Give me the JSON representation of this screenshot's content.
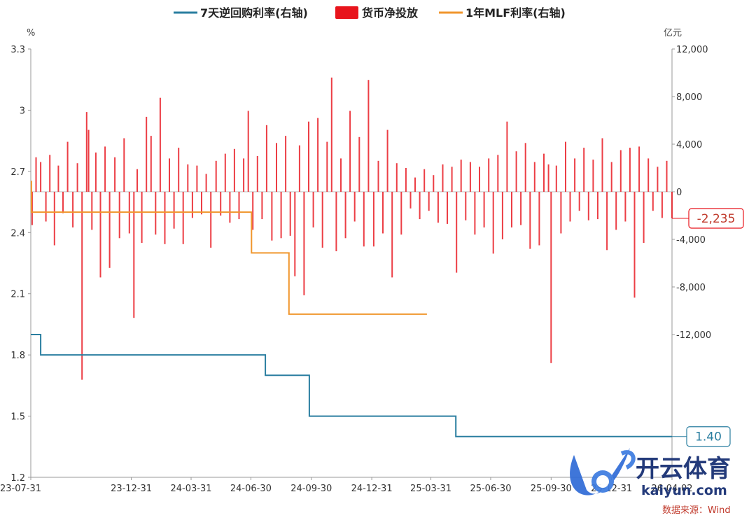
{
  "chart_data": {
    "type": "bar+line",
    "legend": [
      {
        "label": "7天逆回购利率(右轴)",
        "color": "#2a7ea0",
        "kind": "line"
      },
      {
        "label": "货币净投放",
        "color": "#e8141c",
        "kind": "bar"
      },
      {
        "label": "1年MLF利率(右轴)",
        "color": "#f0962d",
        "kind": "line"
      }
    ],
    "left_axis": {
      "unit": "%",
      "min": 1.2,
      "max": 3.3,
      "ticks": [
        "3.3",
        "3",
        "2.7",
        "2.4",
        "2.1",
        "1.8",
        "1.5",
        "1.2"
      ]
    },
    "right_axis": {
      "unit": "亿元",
      "min": -24000,
      "max": 12000,
      "ticks": [
        "12,000",
        "8,000",
        "4,000",
        "0",
        "-4,000",
        "-8,000",
        "-12,000"
      ]
    },
    "x_axis": {
      "start": "2023-07-31",
      "end": "2026-04-02",
      "ticks": [
        {
          "label": "23-07-31",
          "date": "2023-07-31"
        },
        {
          "label": "23-12-31",
          "date": "2023-12-31"
        },
        {
          "label": "24-03-31",
          "date": "2024-03-31"
        },
        {
          "label": "24-06-30",
          "date": "2024-06-30"
        },
        {
          "label": "24-09-30",
          "date": "2024-09-30"
        },
        {
          "label": "24-12-31",
          "date": "2024-12-31"
        },
        {
          "label": "25-03-31",
          "date": "2025-03-31"
        },
        {
          "label": "25-06-30",
          "date": "2025-06-30"
        },
        {
          "label": "25-09-30",
          "date": "2025-09-30"
        },
        {
          "label": "25-12-31",
          "date": "2025-12-31"
        },
        {
          "label": "26-04-02",
          "date": "2026-04-02"
        }
      ]
    },
    "series": [
      {
        "name": "7天逆回购利率(右轴)",
        "axis": "left",
        "shape": "step",
        "points": [
          [
            "2023-07-31",
            1.9
          ],
          [
            "2023-08-15",
            1.8
          ],
          [
            "2024-07-22",
            1.7
          ],
          [
            "2024-09-27",
            1.5
          ],
          [
            "2025-05-08",
            1.4
          ],
          [
            "2026-04-02",
            1.4
          ]
        ]
      },
      {
        "name": "1年MLF利率(右轴)",
        "axis": "left",
        "shape": "step",
        "points": [
          [
            "2023-07-31",
            2.65
          ],
          [
            "2023-08-01",
            2.5
          ],
          [
            "2024-06-30",
            2.5
          ],
          [
            "2024-07-01",
            2.3
          ],
          [
            "2024-08-26",
            2.3
          ],
          [
            "2024-08-27",
            2.0
          ],
          [
            "2025-03-25",
            2.0
          ]
        ]
      },
      {
        "name": "货币净投放",
        "axis": "right",
        "shape": "bars",
        "points": [
          [
            "2023-08-02",
            -2800
          ],
          [
            "2023-08-08",
            2900
          ],
          [
            "2023-08-15",
            2500
          ],
          [
            "2023-08-23",
            -2500
          ],
          [
            "2023-08-29",
            3100
          ],
          [
            "2023-09-05",
            -4500
          ],
          [
            "2023-09-11",
            2200
          ],
          [
            "2023-09-18",
            -1800
          ],
          [
            "2023-09-25",
            4200
          ],
          [
            "2023-10-03",
            -3000
          ],
          [
            "2023-10-10",
            2400
          ],
          [
            "2023-10-17",
            -15800
          ],
          [
            "2023-10-24",
            6700
          ],
          [
            "2023-10-27",
            5200
          ],
          [
            "2023-11-01",
            -3200
          ],
          [
            "2023-11-07",
            3300
          ],
          [
            "2023-11-14",
            -7200
          ],
          [
            "2023-11-21",
            3800
          ],
          [
            "2023-11-28",
            -6400
          ],
          [
            "2023-12-06",
            2900
          ],
          [
            "2023-12-13",
            -3900
          ],
          [
            "2023-12-20",
            4500
          ],
          [
            "2023-12-28",
            -3500
          ],
          [
            "2024-01-04",
            -10600
          ],
          [
            "2024-01-09",
            1900
          ],
          [
            "2024-01-16",
            -4300
          ],
          [
            "2024-01-23",
            6300
          ],
          [
            "2024-01-30",
            4700
          ],
          [
            "2024-02-06",
            -3600
          ],
          [
            "2024-02-13",
            7900
          ],
          [
            "2024-02-20",
            -4400
          ],
          [
            "2024-02-27",
            2800
          ],
          [
            "2024-03-05",
            -3100
          ],
          [
            "2024-03-12",
            3700
          ],
          [
            "2024-03-19",
            -4400
          ],
          [
            "2024-03-26",
            2300
          ],
          [
            "2024-04-02",
            -2200
          ],
          [
            "2024-04-09",
            2200
          ],
          [
            "2024-04-16",
            -1900
          ],
          [
            "2024-04-23",
            1500
          ],
          [
            "2024-04-30",
            -4700
          ],
          [
            "2024-05-08",
            2600
          ],
          [
            "2024-05-15",
            -2000
          ],
          [
            "2024-05-22",
            3200
          ],
          [
            "2024-05-29",
            -2600
          ],
          [
            "2024-06-05",
            3600
          ],
          [
            "2024-06-12",
            -2300
          ],
          [
            "2024-06-19",
            2800
          ],
          [
            "2024-06-26",
            6800
          ],
          [
            "2024-07-03",
            -3200
          ],
          [
            "2024-07-10",
            3000
          ],
          [
            "2024-07-17",
            -2300
          ],
          [
            "2024-07-24",
            5600
          ],
          [
            "2024-08-01",
            -4100
          ],
          [
            "2024-08-08",
            4100
          ],
          [
            "2024-08-15",
            -3900
          ],
          [
            "2024-08-22",
            4700
          ],
          [
            "2024-08-29",
            -3700
          ],
          [
            "2024-09-05",
            -7100
          ],
          [
            "2024-09-12",
            3900
          ],
          [
            "2024-09-19",
            -8700
          ],
          [
            "2024-09-26",
            5900
          ],
          [
            "2024-10-03",
            -3000
          ],
          [
            "2024-10-10",
            6200
          ],
          [
            "2024-10-17",
            -4700
          ],
          [
            "2024-10-24",
            4200
          ],
          [
            "2024-10-31",
            9600
          ],
          [
            "2024-11-07",
            -5000
          ],
          [
            "2024-11-14",
            2800
          ],
          [
            "2024-11-21",
            -3900
          ],
          [
            "2024-11-28",
            6800
          ],
          [
            "2024-12-05",
            -2500
          ],
          [
            "2024-12-12",
            4600
          ],
          [
            "2024-12-19",
            -4600
          ],
          [
            "2024-12-26",
            9400
          ],
          [
            "2025-01-03",
            -4600
          ],
          [
            "2025-01-10",
            2600
          ],
          [
            "2025-01-17",
            -3500
          ],
          [
            "2025-01-24",
            5200
          ],
          [
            "2025-01-31",
            -7200
          ],
          [
            "2025-02-07",
            2400
          ],
          [
            "2025-02-14",
            -3600
          ],
          [
            "2025-02-21",
            2000
          ],
          [
            "2025-02-28",
            -1400
          ],
          [
            "2025-03-07",
            1200
          ],
          [
            "2025-03-14",
            -2300
          ],
          [
            "2025-03-21",
            1900
          ],
          [
            "2025-03-28",
            -1600
          ],
          [
            "2025-04-04",
            1400
          ],
          [
            "2025-04-11",
            -2600
          ],
          [
            "2025-04-18",
            2300
          ],
          [
            "2025-04-25",
            -2700
          ],
          [
            "2025-05-02",
            2100
          ],
          [
            "2025-05-09",
            -6800
          ],
          [
            "2025-05-16",
            2700
          ],
          [
            "2025-05-23",
            -2400
          ],
          [
            "2025-05-30",
            2500
          ],
          [
            "2025-06-06",
            -3600
          ],
          [
            "2025-06-13",
            2100
          ],
          [
            "2025-06-20",
            -3000
          ],
          [
            "2025-06-27",
            2800
          ],
          [
            "2025-07-04",
            -5200
          ],
          [
            "2025-07-11",
            3100
          ],
          [
            "2025-07-18",
            -4000
          ],
          [
            "2025-07-25",
            5900
          ],
          [
            "2025-08-01",
            -3000
          ],
          [
            "2025-08-08",
            3400
          ],
          [
            "2025-08-15",
            -2800
          ],
          [
            "2025-08-22",
            4100
          ],
          [
            "2025-08-29",
            -4800
          ],
          [
            "2025-09-05",
            2500
          ],
          [
            "2025-09-12",
            -4500
          ],
          [
            "2025-09-19",
            3200
          ],
          [
            "2025-09-26",
            2300
          ],
          [
            "2025-09-30",
            -14400
          ],
          [
            "2025-10-08",
            2200
          ],
          [
            "2025-10-15",
            -3500
          ],
          [
            "2025-10-22",
            4200
          ],
          [
            "2025-10-29",
            -2500
          ],
          [
            "2025-11-05",
            2800
          ],
          [
            "2025-11-12",
            -1600
          ],
          [
            "2025-11-19",
            3700
          ],
          [
            "2025-11-26",
            -2400
          ],
          [
            "2025-12-03",
            2700
          ],
          [
            "2025-12-10",
            -2300
          ],
          [
            "2025-12-17",
            4500
          ],
          [
            "2025-12-24",
            -4900
          ],
          [
            "2025-12-31",
            2500
          ],
          [
            "2026-01-07",
            -3200
          ],
          [
            "2026-01-14",
            3500
          ],
          [
            "2026-01-21",
            -2500
          ],
          [
            "2026-01-28",
            3700
          ],
          [
            "2026-02-04",
            -8900
          ],
          [
            "2026-02-11",
            3800
          ],
          [
            "2026-02-18",
            -4300
          ],
          [
            "2026-02-25",
            2800
          ],
          [
            "2026-03-04",
            -1600
          ],
          [
            "2026-03-11",
            2100
          ],
          [
            "2026-03-18",
            -2200
          ],
          [
            "2026-03-25",
            2600
          ],
          [
            "2026-04-02",
            -2235
          ]
        ]
      }
    ],
    "end_labels": {
      "bars": "-2,235",
      "line": "1.40"
    },
    "grid": false
  },
  "watermark": {
    "brand": "开云体育",
    "url": "kaiyun.com"
  },
  "source": "数据来源：Wind"
}
